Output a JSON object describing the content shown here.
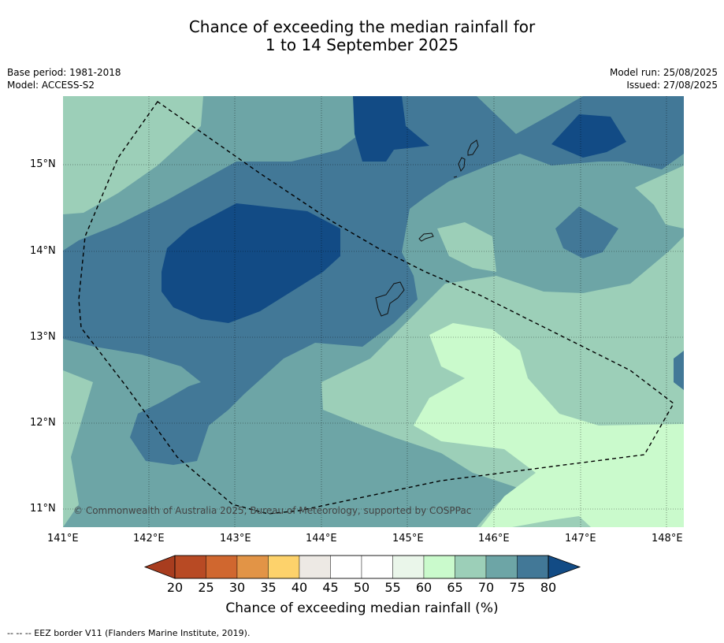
{
  "title_line1": "Chance of exceeding the median rainfall for",
  "title_line2": "1 to 14 September 2025",
  "meta_left": {
    "base_period": "Base period: 1981-2018",
    "model": "Model: ACCESS-S2"
  },
  "meta_right": {
    "model_run": "Model run: 25/08/2025",
    "issued": "Issued: 27/08/2025"
  },
  "x_ticks": [
    "141°E",
    "142°E",
    "143°E",
    "144°E",
    "145°E",
    "146°E",
    "147°E",
    "148°E"
  ],
  "y_ticks": [
    "15°N",
    "14°N",
    "13°N",
    "12°N",
    "11°N"
  ],
  "copyright": "© Commonwealth of Australia 2025, Bureau of Meteorology, supported by COSPPac",
  "colorbar": {
    "labels": [
      "20",
      "25",
      "30",
      "35",
      "40",
      "45",
      "50",
      "55",
      "60",
      "65",
      "70",
      "75",
      "80"
    ],
    "colors": [
      "#a83d1f",
      "#b84a24",
      "#d0672f",
      "#e29446",
      "#fdd26b",
      "#ede9e4",
      "#ffffff",
      "#ffffff",
      "#eaf6ea",
      "#cafacc",
      "#9ccfb8",
      "#6da5a6",
      "#427897",
      "#124b85"
    ],
    "title": "Chance of exceeding median rainfall (%)"
  },
  "legend_footer": "--  --  -- EEZ border V11 (Flanders Marine Institute, 2019)."
}
